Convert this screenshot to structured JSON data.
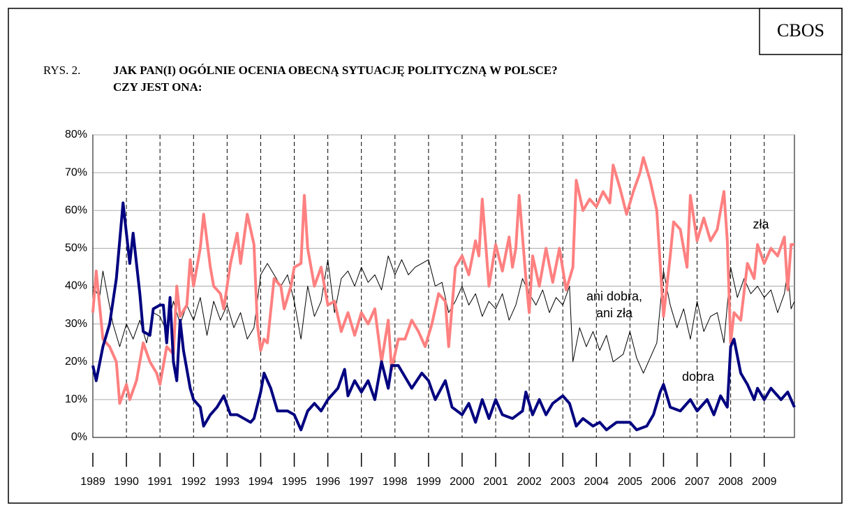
{
  "chart_data": {
    "type": "line",
    "brand": "CBOS",
    "figure_label": "RYS. 2.",
    "title_lines": [
      "JAK PAN(I) OGÓLNIE OCENIA OBECNĄ SYTUACJĘ POLITYCZNĄ W POLSCE?",
      "CZY JEST ONA:"
    ],
    "xlim": [
      1989,
      2009.9
    ],
    "xticks": [
      1989,
      1990,
      1991,
      1992,
      1993,
      1994,
      1995,
      1996,
      1997,
      1998,
      1999,
      2000,
      2001,
      2002,
      2003,
      2004,
      2005,
      2006,
      2007,
      2008,
      2009
    ],
    "ylim": [
      0,
      80
    ],
    "yticks": [
      {
        "value": 0,
        "label": "0%"
      },
      {
        "value": 10,
        "label": "10%"
      },
      {
        "value": 20,
        "label": "20%"
      },
      {
        "value": 30,
        "label": "30%"
      },
      {
        "value": 40,
        "label": "40%"
      },
      {
        "value": 50,
        "label": "50%"
      },
      {
        "value": 60,
        "label": "60%"
      },
      {
        "value": 70,
        "label": "70%"
      },
      {
        "value": 80,
        "label": "80%"
      }
    ],
    "grid": true,
    "series": [
      {
        "name": "ani dobra, ani zła",
        "label_lines": [
          "ani dobra,",
          "ani zła"
        ],
        "color": "#000000",
        "width": 1,
        "x": [
          1989.0,
          1989.2,
          1989.3,
          1989.6,
          1989.8,
          1990.0,
          1990.2,
          1990.4,
          1990.6,
          1990.8,
          1991.0,
          1991.2,
          1991.4,
          1991.6,
          1991.8,
          1992.0,
          1992.2,
          1992.4,
          1992.6,
          1992.8,
          1993.0,
          1993.2,
          1993.4,
          1993.6,
          1993.8,
          1994.0,
          1994.2,
          1994.4,
          1994.6,
          1994.8,
          1995.0,
          1995.2,
          1995.4,
          1995.6,
          1995.8,
          1996.0,
          1996.2,
          1996.4,
          1996.6,
          1996.8,
          1997.0,
          1997.2,
          1997.4,
          1997.6,
          1997.8,
          1998.0,
          1998.2,
          1998.4,
          1998.6,
          1998.8,
          1999.0,
          1999.2,
          1999.4,
          1999.6,
          1999.8,
          2000.0,
          2000.2,
          2000.4,
          2000.6,
          2000.8,
          2001.0,
          2001.2,
          2001.4,
          2001.6,
          2001.8,
          2002.0,
          2002.2,
          2002.4,
          2002.6,
          2002.8,
          2003.0,
          2003.2,
          2003.3,
          2003.5,
          2003.7,
          2003.9,
          2004.1,
          2004.3,
          2004.5,
          2004.8,
          2005.0,
          2005.2,
          2005.4,
          2005.6,
          2005.8,
          2006.0,
          2006.2,
          2006.4,
          2006.6,
          2006.8,
          2007.0,
          2007.2,
          2007.4,
          2007.6,
          2007.8,
          2008.0,
          2008.2,
          2008.4,
          2008.6,
          2008.8,
          2009.0,
          2009.2,
          2009.4,
          2009.6,
          2009.7,
          2009.8,
          2009.9
        ],
        "values": [
          40,
          37,
          44,
          30,
          24,
          30,
          26,
          31,
          25,
          33,
          32,
          28,
          36,
          30,
          35,
          31,
          37,
          27,
          36,
          31,
          35,
          29,
          33,
          26,
          29,
          43,
          46,
          43,
          40,
          43,
          36,
          26,
          40,
          32,
          36,
          47,
          33,
          42,
          44,
          40,
          45,
          41,
          43,
          39,
          48,
          43,
          47,
          43,
          45,
          46,
          47,
          40,
          41,
          33,
          36,
          40,
          35,
          38,
          32,
          36,
          34,
          38,
          31,
          35,
          42,
          38,
          35,
          39,
          33,
          37,
          35,
          40,
          20,
          29,
          24,
          28,
          23,
          27,
          20,
          22,
          28,
          21,
          17,
          21,
          25,
          44,
          35,
          29,
          34,
          26,
          36,
          28,
          32,
          33,
          25,
          45,
          37,
          42,
          38,
          40,
          37,
          39,
          33,
          38,
          44,
          34,
          36
        ]
      },
      {
        "name": "zła",
        "color": "#ff8080",
        "width": 4,
        "x": [
          1989.0,
          1989.1,
          1989.3,
          1989.5,
          1989.7,
          1989.8,
          1990.0,
          1990.1,
          1990.3,
          1990.5,
          1990.7,
          1990.9,
          1991.0,
          1991.2,
          1991.4,
          1991.5,
          1991.6,
          1991.8,
          1991.9,
          1992.0,
          1992.2,
          1992.3,
          1992.5,
          1992.6,
          1992.8,
          1992.9,
          1993.1,
          1993.3,
          1993.4,
          1993.6,
          1993.8,
          1993.9,
          1994.0,
          1994.1,
          1994.2,
          1994.4,
          1994.6,
          1994.7,
          1994.9,
          1995.0,
          1995.2,
          1995.3,
          1995.4,
          1995.6,
          1995.8,
          1996.0,
          1996.2,
          1996.4,
          1996.6,
          1996.8,
          1997.0,
          1997.2,
          1997.4,
          1997.6,
          1997.8,
          1997.9,
          1998.1,
          1998.3,
          1998.5,
          1998.7,
          1998.9,
          1999.1,
          1999.3,
          1999.5,
          1999.6,
          1999.8,
          2000.0,
          2000.2,
          2000.4,
          2000.5,
          2000.6,
          2000.8,
          2001.0,
          2001.2,
          2001.4,
          2001.5,
          2001.6,
          2001.7,
          2001.9,
          2002.0,
          2002.1,
          2002.3,
          2002.5,
          2002.7,
          2002.9,
          2003.1,
          2003.3,
          2003.4,
          2003.6,
          2003.8,
          2004.0,
          2004.2,
          2004.4,
          2004.5,
          2004.7,
          2004.9,
          2005.1,
          2005.3,
          2005.4,
          2005.6,
          2005.8,
          2006.0,
          2006.2,
          2006.3,
          2006.5,
          2006.7,
          2006.8,
          2007.0,
          2007.2,
          2007.4,
          2007.6,
          2007.8,
          2007.9,
          2008.0,
          2008.1,
          2008.3,
          2008.5,
          2008.7,
          2008.8,
          2009.0,
          2009.2,
          2009.4,
          2009.6,
          2009.7,
          2009.8,
          2009.9
        ],
        "values": [
          33,
          44,
          26,
          24,
          20,
          9,
          14,
          10,
          15,
          25,
          20,
          17,
          14,
          24,
          22,
          40,
          32,
          35,
          47,
          40,
          50,
          59,
          45,
          40,
          38,
          34,
          46,
          54,
          46,
          59,
          51,
          30,
          23,
          26,
          25,
          42,
          40,
          34,
          40,
          45,
          46,
          64,
          50,
          40,
          45,
          35,
          36,
          28,
          33,
          27,
          33,
          30,
          34,
          20,
          31,
          18,
          26,
          26,
          31,
          28,
          24,
          30,
          38,
          36,
          24,
          45,
          48,
          43,
          52,
          48,
          63,
          40,
          51,
          44,
          53,
          45,
          50,
          64,
          42,
          33,
          48,
          40,
          50,
          41,
          50,
          39,
          45,
          68,
          60,
          63,
          61,
          65,
          62,
          72,
          66,
          59,
          65,
          70,
          74,
          68,
          60,
          32,
          48,
          57,
          55,
          45,
          64,
          52,
          58,
          52,
          55,
          65,
          52,
          25,
          33,
          31,
          46,
          42,
          51,
          46,
          50,
          48,
          53,
          39,
          51,
          51
        ]
      },
      {
        "name": "dobra",
        "color": "#000080",
        "width": 4,
        "x": [
          1989.0,
          1989.1,
          1989.3,
          1989.5,
          1989.7,
          1989.9,
          1990.1,
          1990.2,
          1990.4,
          1990.5,
          1990.7,
          1990.8,
          1991.0,
          1991.1,
          1991.2,
          1991.3,
          1991.4,
          1991.5,
          1991.6,
          1991.7,
          1991.9,
          1992.0,
          1992.2,
          1992.3,
          1992.5,
          1992.7,
          1992.9,
          1993.1,
          1993.3,
          1993.5,
          1993.7,
          1993.8,
          1994.0,
          1994.1,
          1994.3,
          1994.5,
          1994.8,
          1995.0,
          1995.2,
          1995.4,
          1995.6,
          1995.8,
          1996.0,
          1996.3,
          1996.5,
          1996.6,
          1996.8,
          1997.0,
          1997.2,
          1997.4,
          1997.6,
          1997.8,
          1997.9,
          1998.1,
          1998.3,
          1998.5,
          1998.8,
          1999.0,
          1999.2,
          1999.5,
          1999.7,
          2000.0,
          2000.2,
          2000.4,
          2000.6,
          2000.8,
          2001.0,
          2001.2,
          2001.5,
          2001.8,
          2001.9,
          2002.1,
          2002.3,
          2002.5,
          2002.7,
          2003.0,
          2003.2,
          2003.4,
          2003.6,
          2003.9,
          2004.1,
          2004.3,
          2004.6,
          2005.0,
          2005.2,
          2005.5,
          2005.7,
          2005.9,
          2006.0,
          2006.2,
          2006.5,
          2006.8,
          2007.0,
          2007.3,
          2007.5,
          2007.7,
          2007.9,
          2008.0,
          2008.1,
          2008.3,
          2008.5,
          2008.7,
          2008.8,
          2009.0,
          2009.2,
          2009.5,
          2009.7,
          2009.9
        ],
        "values": [
          19,
          15,
          24,
          30,
          42,
          62,
          46,
          54,
          38,
          28,
          27,
          34,
          35,
          35,
          25,
          37,
          20,
          15,
          31,
          23,
          13,
          10,
          8,
          3,
          6,
          8,
          11,
          6,
          6,
          5,
          4,
          5,
          12,
          17,
          13,
          7,
          7,
          6,
          2,
          7,
          9,
          7,
          10,
          13,
          18,
          11,
          15,
          12,
          15,
          10,
          20,
          13,
          19,
          19,
          16,
          13,
          17,
          15,
          10,
          15,
          8,
          6,
          9,
          4,
          10,
          5,
          10,
          6,
          5,
          7,
          12,
          6,
          10,
          6,
          9,
          11,
          9,
          3,
          5,
          3,
          4,
          2,
          4,
          4,
          2,
          3,
          6,
          12,
          14,
          8,
          7,
          10,
          7,
          10,
          6,
          11,
          8,
          24,
          26,
          17,
          14,
          10,
          13,
          10,
          13,
          10,
          12,
          8
        ]
      }
    ]
  }
}
